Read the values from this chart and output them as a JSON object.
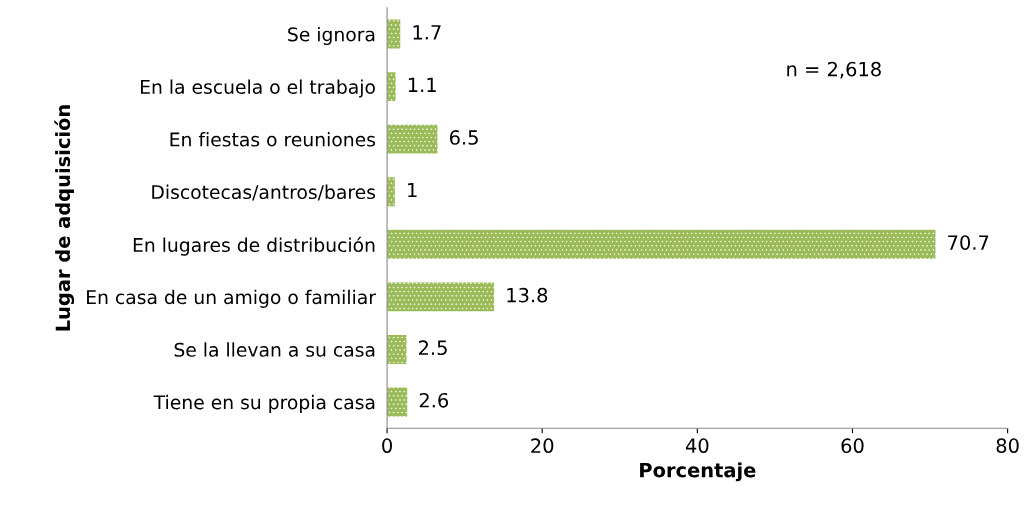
{
  "chart_data": {
    "type": "bar",
    "orientation": "horizontal",
    "categories": [
      "Se ignora",
      "En la escuela o el trabajo",
      "En fiestas o reuniones",
      "Discotecas/antros/bares",
      "En lugares de distribución",
      "En casa de un amigo o familiar",
      "Se la llevan a su casa",
      "Tiene en su propia casa"
    ],
    "values": [
      1.7,
      1.1,
      6.5,
      1,
      70.7,
      13.8,
      2.5,
      2.6
    ],
    "color": "#9bbb59",
    "xlim": [
      0,
      80
    ],
    "xticks": [
      0,
      20,
      40,
      60,
      80
    ],
    "xlabel": "Porcentaje",
    "ylabel": "Lugar de adquisición",
    "annotations": [
      "n = 2,618"
    ],
    "data_labels": true,
    "grid": false,
    "legend": false
  }
}
